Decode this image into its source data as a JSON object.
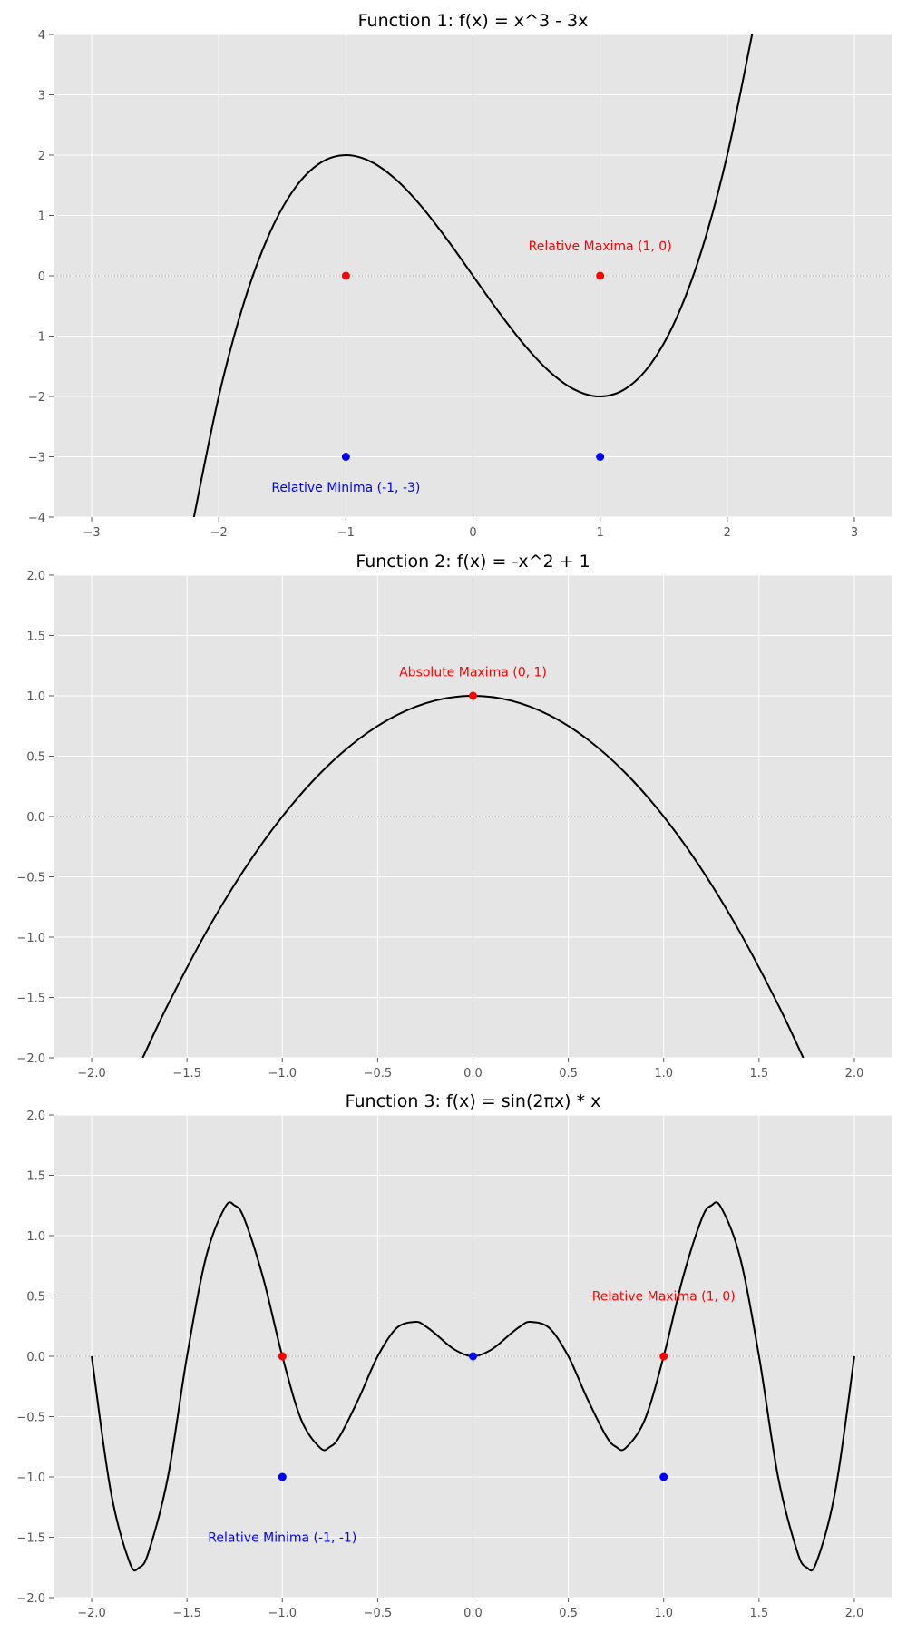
{
  "chart_data": [
    {
      "type": "line",
      "title": "Function 1: f(x) = x^3 - 3x",
      "xlim": [
        -3.3,
        3.3
      ],
      "ylim": [
        -4,
        4
      ],
      "xticks": [
        -3,
        -2,
        -1,
        0,
        1,
        2,
        3
      ],
      "yticks": [
        -4,
        -3,
        -2,
        -1,
        0,
        1,
        2,
        3,
        4
      ],
      "xtick_labels": [
        "−3",
        "−2",
        "−1",
        "0",
        "1",
        "2",
        "3"
      ],
      "ytick_labels": [
        "−4",
        "−3",
        "−2",
        "−1",
        "0",
        "1",
        "2",
        "3",
        "4"
      ],
      "series": [
        {
          "x": [
            -2.2,
            -2.0,
            -1.8,
            -1.6,
            -1.4,
            -1.2,
            -1.0,
            -0.8,
            -0.6,
            -0.4,
            -0.2,
            0.0,
            0.2,
            0.4,
            0.6,
            0.8,
            1.0,
            1.2,
            1.4,
            1.6,
            1.8,
            2.0,
            2.2
          ],
          "y": [
            -4.048,
            -2.0,
            -0.432,
            0.704,
            1.456,
            1.872,
            2.0,
            1.888,
            1.584,
            1.136,
            0.592,
            0.0,
            -0.592,
            -1.136,
            -1.584,
            -1.888,
            -2.0,
            -1.872,
            -1.456,
            -0.704,
            0.432,
            2.0,
            4.048
          ],
          "color": "#000000"
        }
      ],
      "points": [
        {
          "x": -1,
          "y": 0,
          "color": "#ff0000"
        },
        {
          "x": 1,
          "y": 0,
          "color": "#ff0000"
        },
        {
          "x": -1,
          "y": -3,
          "color": "#0000ff"
        },
        {
          "x": 1,
          "y": -3,
          "color": "#0000ff"
        }
      ],
      "annotations": [
        {
          "text": "Relative Maxima (1, 0)",
          "x": 1,
          "y": 0.5,
          "color": "#ff0000"
        },
        {
          "text": "Relative Minima (-1, -3)",
          "x": -1,
          "y": -3.5,
          "color": "#0000ff"
        }
      ],
      "zero_line": true,
      "grid": true
    },
    {
      "type": "line",
      "title": "Function 2: f(x) = -x^2 + 1",
      "xlim": [
        -2.2,
        2.2
      ],
      "ylim": [
        -2,
        2
      ],
      "xticks": [
        -2.0,
        -1.5,
        -1.0,
        -0.5,
        0.0,
        0.5,
        1.0,
        1.5,
        2.0
      ],
      "yticks": [
        -2.0,
        -1.5,
        -1.0,
        -0.5,
        0.0,
        0.5,
        1.0,
        1.5,
        2.0
      ],
      "xtick_labels": [
        "−2.0",
        "−1.5",
        "−1.0",
        "−0.5",
        "0.0",
        "0.5",
        "1.0",
        "1.5",
        "2.0"
      ],
      "ytick_labels": [
        "−2.0",
        "−1.5",
        "−1.0",
        "−0.5",
        "0.0",
        "0.5",
        "1.0",
        "1.5",
        "2.0"
      ],
      "series": [
        {
          "x": [
            -1.7321,
            -1.6,
            -1.4,
            -1.2,
            -1.0,
            -0.8,
            -0.6,
            -0.4,
            -0.2,
            0.0,
            0.2,
            0.4,
            0.6,
            0.8,
            1.0,
            1.2,
            1.4,
            1.6,
            1.7321
          ],
          "y": [
            -2.0,
            -1.56,
            -0.96,
            -0.44,
            0.0,
            0.36,
            0.64,
            0.84,
            0.96,
            1.0,
            0.96,
            0.84,
            0.64,
            0.36,
            0.0,
            -0.44,
            -0.96,
            -1.56,
            -2.0
          ],
          "color": "#000000"
        }
      ],
      "points": [
        {
          "x": 0,
          "y": 1,
          "color": "#ff0000"
        }
      ],
      "annotations": [
        {
          "text": "Absolute Maxima (0, 1)",
          "x": 0,
          "y": 1.2,
          "color": "#ff0000"
        }
      ],
      "zero_line": true,
      "grid": true
    },
    {
      "type": "line",
      "title": "Function 3: f(x) = sin(2πx) * x",
      "xlim": [
        -2.2,
        2.2
      ],
      "ylim": [
        -2,
        2
      ],
      "xticks": [
        -2.0,
        -1.5,
        -1.0,
        -0.5,
        0.0,
        0.5,
        1.0,
        1.5,
        2.0
      ],
      "yticks": [
        -2.0,
        -1.5,
        -1.0,
        -0.5,
        0.0,
        0.5,
        1.0,
        1.5,
        2.0
      ],
      "xtick_labels": [
        "−2.0",
        "−1.5",
        "−1.0",
        "−0.5",
        "0.0",
        "0.5",
        "1.0",
        "1.5",
        "2.0"
      ],
      "ytick_labels": [
        "−2.0",
        "−1.5",
        "−1.0",
        "−0.5",
        "0.0",
        "0.5",
        "1.0",
        "1.5",
        "2.0"
      ],
      "series": [
        {
          "x": [
            -2.0,
            -1.9,
            -1.8,
            -1.75,
            -1.7,
            -1.6,
            -1.5,
            -1.4,
            -1.3,
            -1.25,
            -1.2,
            -1.1,
            -1.0,
            -0.9,
            -0.8,
            -0.75,
            -0.7,
            -0.6,
            -0.5,
            -0.4,
            -0.3,
            -0.25,
            -0.2,
            -0.1,
            0.0,
            0.1,
            0.2,
            0.25,
            0.3,
            0.4,
            0.5,
            0.6,
            0.7,
            0.75,
            0.8,
            0.9,
            1.0,
            1.1,
            1.2,
            1.25,
            1.3,
            1.4,
            1.5,
            1.6,
            1.7,
            1.75,
            1.8,
            1.9,
            2.0
          ],
          "y": [
            0.0,
            -1.1168,
            -1.7119,
            -1.75,
            -1.6168,
            -1.0,
            0.0,
            0.8229,
            1.2364,
            1.25,
            1.1413,
            0.6466,
            0.0,
            -0.529,
            -0.7608,
            -0.75,
            -0.6657,
            -0.3527,
            0.0,
            0.2351,
            0.2853,
            0.25,
            0.1902,
            0.0588,
            0.0,
            0.0588,
            0.1902,
            0.25,
            0.2853,
            0.2351,
            0.0,
            -0.3527,
            -0.6657,
            -0.75,
            -0.7608,
            -0.529,
            0.0,
            0.6466,
            1.1413,
            1.25,
            1.2364,
            0.8229,
            0.0,
            -1.0,
            -1.6168,
            -1.75,
            -1.7119,
            -1.1168,
            0.0
          ],
          "color": "#000000"
        }
      ],
      "points": [
        {
          "x": -1,
          "y": 0,
          "color": "#ff0000"
        },
        {
          "x": 1,
          "y": 0,
          "color": "#ff0000"
        },
        {
          "x": 0,
          "y": 0,
          "color": "#0000ff"
        },
        {
          "x": -1,
          "y": -1,
          "color": "#0000ff"
        },
        {
          "x": 1,
          "y": -1,
          "color": "#0000ff"
        }
      ],
      "annotations": [
        {
          "text": "Relative Maxima (1, 0)",
          "x": 1,
          "y": 0.5,
          "color": "#ff0000"
        },
        {
          "text": "Relative Minima (-1, -1)",
          "x": -1,
          "y": -1.5,
          "color": "#0000ff"
        }
      ],
      "zero_line": true,
      "grid": true
    }
  ]
}
